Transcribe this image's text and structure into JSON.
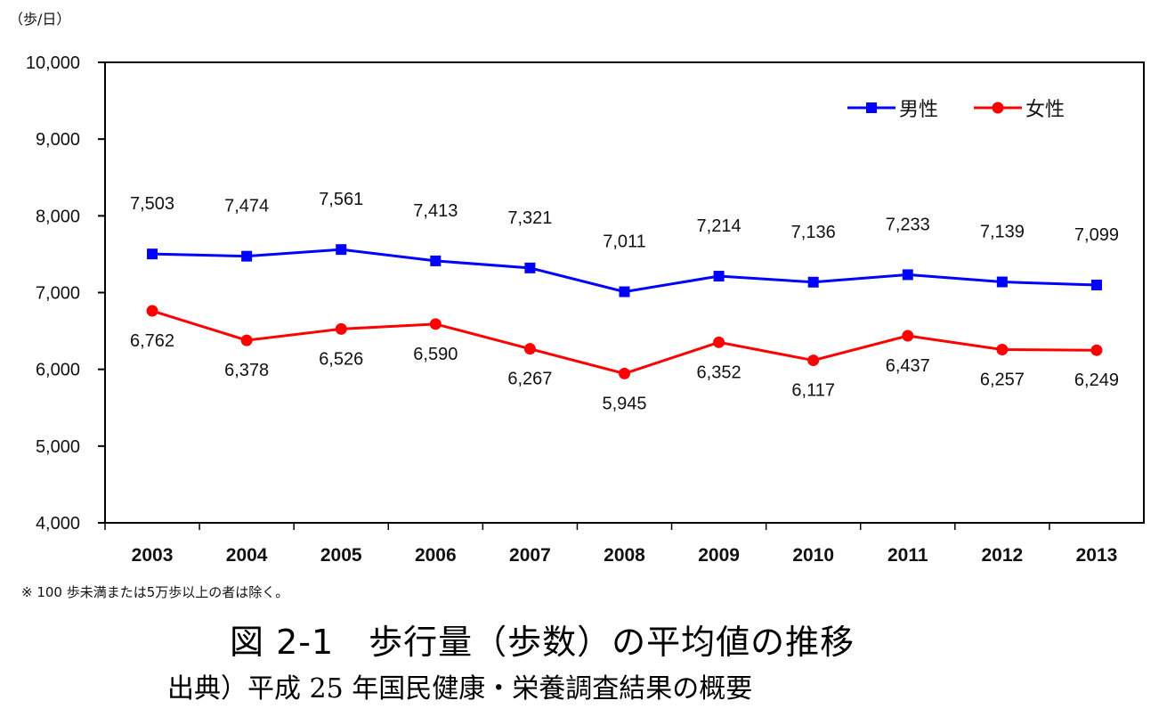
{
  "chart_data": {
    "type": "line",
    "title": "図 2-1　歩行量（歩数）の平均値の推移",
    "source": "出典）平成 25 年国民健康・栄養調査結果の概要",
    "note": "※ 100 歩未満または5万歩以上の者は除く。",
    "ylabel": "（歩/日）",
    "xlabel": "",
    "ylim": [
      4000,
      10000
    ],
    "yticks": [
      4000,
      5000,
      6000,
      7000,
      8000,
      9000,
      10000
    ],
    "ytick_labels": [
      "4,000",
      "5,000",
      "6,000",
      "7,000",
      "8,000",
      "9,000",
      "10,000"
    ],
    "categories": [
      "2003",
      "2004",
      "2005",
      "2006",
      "2007",
      "2008",
      "2009",
      "2010",
      "2011",
      "2012",
      "2013"
    ],
    "grid": false,
    "legend_position": "top-right",
    "series": [
      {
        "name": "男性",
        "color": "#0000ff",
        "marker": "square",
        "values": [
          7503,
          7474,
          7561,
          7413,
          7321,
          7011,
          7214,
          7136,
          7233,
          7139,
          7099
        ],
        "labels": [
          "7,503",
          "7,474",
          "7,561",
          "7,413",
          "7,321",
          "7,011",
          "7,214",
          "7,136",
          "7,233",
          "7,139",
          "7,099"
        ]
      },
      {
        "name": "女性",
        "color": "#ff0000",
        "marker": "circle",
        "values": [
          6762,
          6378,
          6526,
          6590,
          6267,
          5945,
          6352,
          6117,
          6437,
          6257,
          6249
        ],
        "labels": [
          "6,762",
          "6,378",
          "6,526",
          "6,590",
          "6,267",
          "5,945",
          "6,352",
          "6,117",
          "6,437",
          "6,257",
          "6,249"
        ]
      }
    ]
  }
}
